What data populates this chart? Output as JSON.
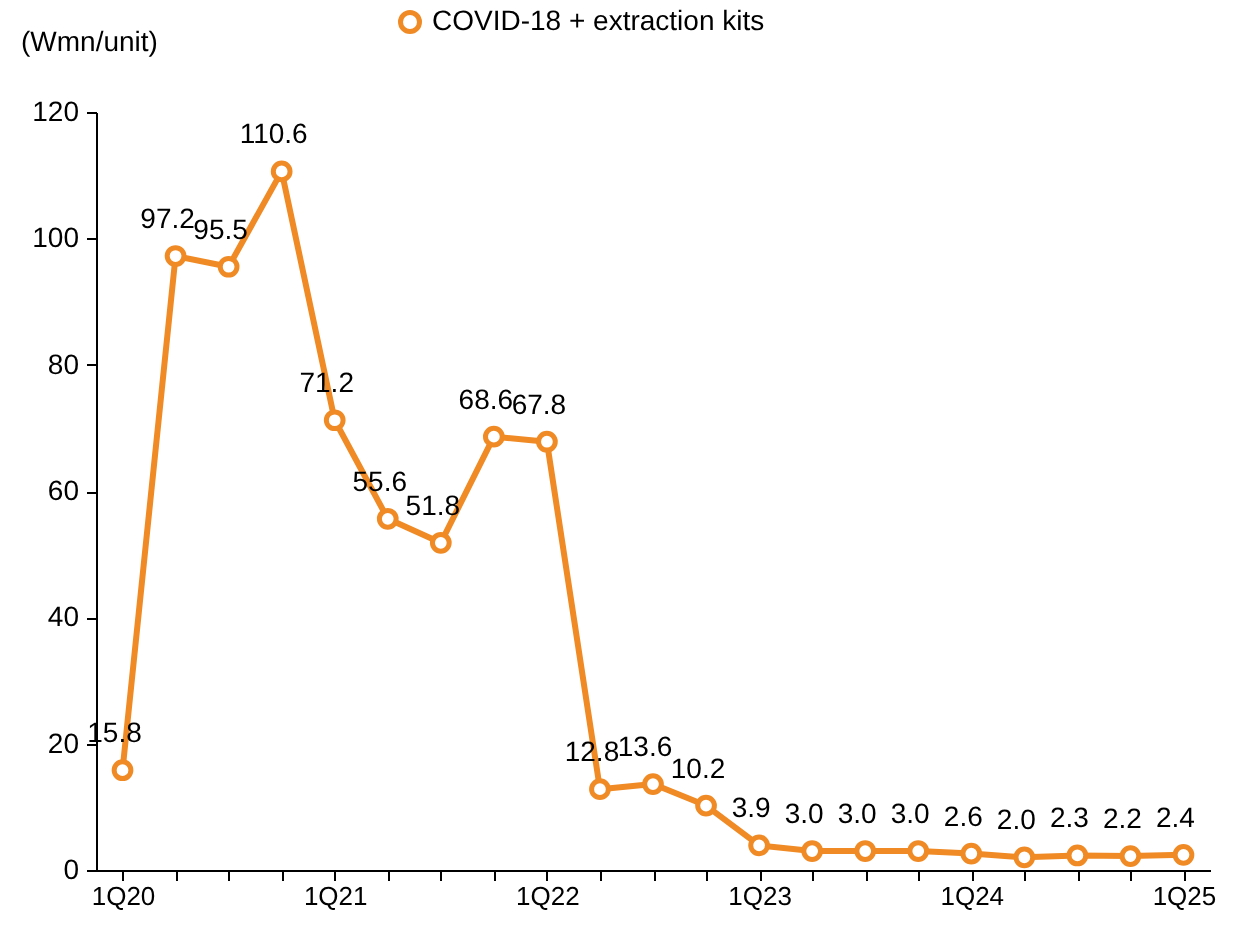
{
  "chart_data": {
    "type": "line",
    "ylabel": "(Wmn/unit)",
    "categories": [
      "1Q20",
      null,
      null,
      null,
      "1Q21",
      null,
      null,
      null,
      "1Q22",
      null,
      null,
      null,
      "1Q23",
      null,
      null,
      null,
      "1Q24",
      null,
      null,
      null,
      "1Q25"
    ],
    "series": [
      {
        "name": "COVID-18 + extraction kits",
        "color": "#f08a24",
        "values": [
          15.8,
          97.2,
          95.5,
          110.6,
          71.2,
          55.6,
          51.8,
          68.6,
          67.8,
          12.8,
          13.6,
          10.2,
          3.9,
          3.0,
          3.0,
          3.0,
          2.6,
          2.0,
          2.3,
          2.2,
          2.4
        ],
        "value_labels": [
          "15.8",
          "97.2",
          "95.5",
          "110.6",
          "71.2",
          "55.6",
          "51.8",
          "68.6",
          "67.8",
          "12.8",
          "13.6",
          "10.2",
          "3.9",
          "3.0",
          "3.0",
          "3.0",
          "2.6",
          "2.0",
          "2.3",
          "2.2",
          "2.4"
        ]
      }
    ],
    "ylim": [
      0,
      120
    ],
    "yticks": [
      0,
      20,
      40,
      60,
      80,
      100,
      120
    ],
    "grid": false,
    "legend": "top",
    "marker": "circle",
    "line_style": "solid"
  }
}
